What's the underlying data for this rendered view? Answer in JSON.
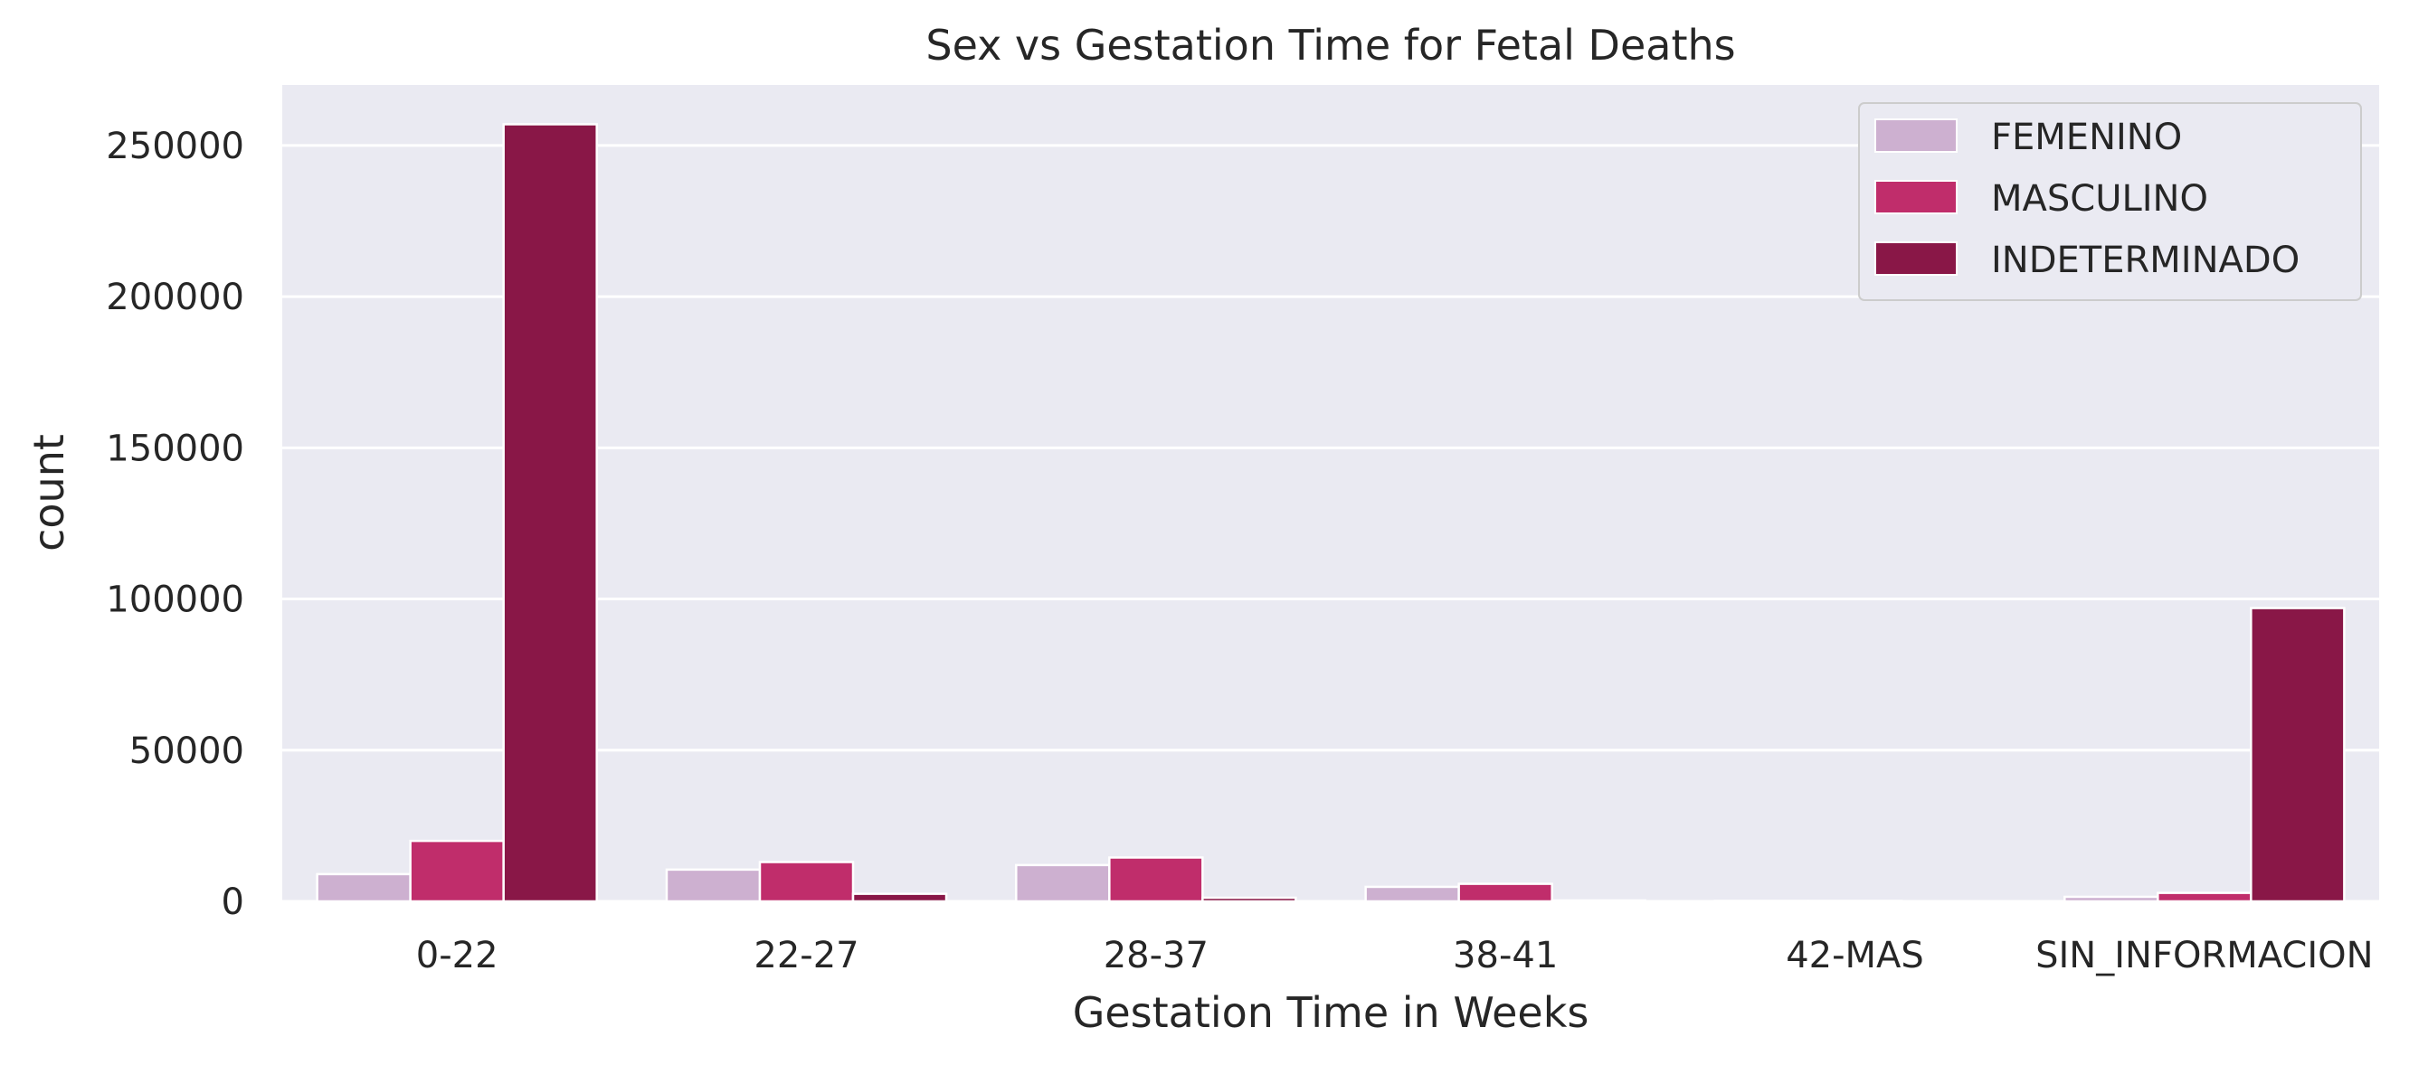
{
  "chart_data": {
    "type": "bar",
    "title": "Sex vs Gestation Time for Fetal Deaths",
    "xlabel": "Gestation Time in Weeks",
    "ylabel": "count",
    "categories": [
      "0-22",
      "22-27",
      "28-37",
      "38-41",
      "42-MAS",
      "SIN_INFORMACION"
    ],
    "series": [
      {
        "name": "FEMENINO",
        "color": "#cdb0d0",
        "values": [
          9000,
          10500,
          12000,
          4800,
          150,
          1500
        ]
      },
      {
        "name": "MASCULINO",
        "color": "#c02d6b",
        "values": [
          20000,
          13000,
          14500,
          5800,
          150,
          2800
        ]
      },
      {
        "name": "INDETERMINADO",
        "color": "#891747",
        "values": [
          257000,
          2500,
          1200,
          300,
          50,
          97000
        ]
      }
    ],
    "ylim": [
      0,
      270000
    ],
    "yticks": [
      0,
      50000,
      100000,
      150000,
      200000,
      250000
    ],
    "grid": true,
    "legend_position": "top-right",
    "background": "#eaeaf2"
  }
}
